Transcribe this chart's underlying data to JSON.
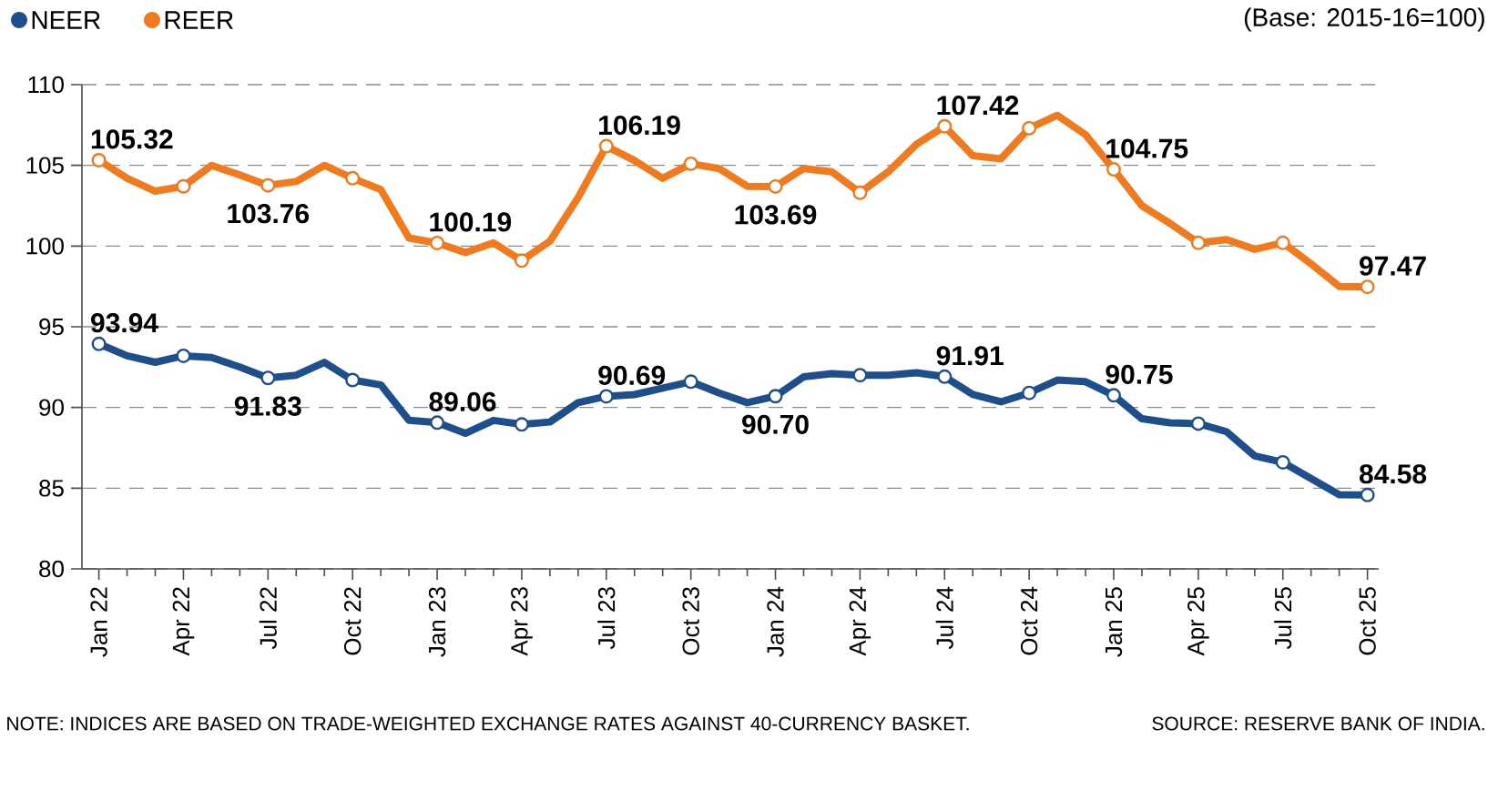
{
  "chart_data": {
    "type": "line",
    "categories": [
      "Jan 22",
      null,
      null,
      "Apr 22",
      null,
      null,
      "Jul 22",
      null,
      null,
      "Oct 22",
      null,
      null,
      "Jan 23",
      null,
      null,
      "Apr 23",
      null,
      null,
      "Jul 23",
      null,
      null,
      "Oct 23",
      null,
      null,
      "Jan 24",
      null,
      null,
      "Apr 24",
      null,
      null,
      "Jul 24",
      null,
      null,
      "Oct 24",
      null,
      null,
      "Jan 25",
      null,
      null,
      "Apr 25",
      null,
      null,
      "Jul 25",
      null,
      null,
      "Oct 25"
    ],
    "series": [
      {
        "name": "NEER",
        "color": "#1f4e8c",
        "values": [
          93.94,
          93.2,
          92.8,
          93.2,
          93.1,
          92.5,
          91.83,
          92.0,
          92.8,
          91.7,
          91.4,
          89.2,
          89.06,
          88.4,
          89.2,
          88.95,
          89.1,
          90.3,
          90.69,
          90.8,
          91.2,
          91.6,
          90.9,
          90.3,
          90.7,
          91.9,
          92.1,
          92.0,
          92.0,
          92.15,
          91.91,
          90.8,
          90.35,
          90.9,
          91.7,
          91.6,
          90.75,
          89.3,
          89.05,
          89.0,
          88.5,
          87.0,
          86.6,
          85.6,
          84.6,
          84.58
        ],
        "value_labels": [
          "93.94",
          null,
          null,
          null,
          null,
          null,
          "91.83",
          null,
          null,
          null,
          null,
          null,
          "89.06",
          null,
          null,
          null,
          null,
          null,
          "90.69",
          null,
          null,
          null,
          null,
          null,
          "90.70",
          null,
          null,
          null,
          null,
          null,
          "91.91",
          null,
          null,
          null,
          null,
          null,
          "90.75",
          null,
          null,
          null,
          null,
          null,
          null,
          null,
          null,
          "84.58"
        ]
      },
      {
        "name": "REER",
        "color": "#f07a1d",
        "values": [
          105.32,
          104.2,
          103.4,
          103.7,
          105.0,
          104.4,
          103.76,
          104.0,
          105.0,
          104.2,
          103.5,
          100.5,
          100.19,
          99.6,
          100.2,
          99.1,
          100.3,
          103.0,
          106.19,
          105.3,
          104.2,
          105.1,
          104.8,
          103.7,
          103.69,
          104.8,
          104.6,
          103.3,
          104.6,
          106.3,
          107.42,
          105.6,
          105.4,
          107.3,
          108.1,
          106.9,
          104.75,
          102.5,
          101.4,
          100.2,
          100.4,
          99.8,
          100.2,
          98.9,
          97.5,
          97.47
        ],
        "value_labels": [
          "105.32",
          null,
          null,
          null,
          null,
          null,
          "103.76",
          null,
          null,
          null,
          null,
          null,
          "100.19",
          null,
          null,
          null,
          null,
          null,
          "106.19",
          null,
          null,
          null,
          null,
          null,
          "103.69",
          null,
          null,
          null,
          null,
          null,
          "107.42",
          null,
          null,
          null,
          null,
          null,
          "104.75",
          null,
          null,
          null,
          null,
          null,
          null,
          null,
          null,
          "97.47"
        ]
      },
      {
        "type": "scatter",
        "color": "#1f4e8c",
        "x": [
          "Jan 22",
          "Apr 22",
          "Jul 22",
          "Oct 22",
          "Jan 23",
          "Apr 23",
          "Jul 23",
          "Oct 23",
          "Jan 24",
          "Apr 24",
          "Jul 24",
          "Oct 24",
          "Jan 25",
          "Apr 25",
          "Jul 25",
          "Oct 25"
        ],
        "values": [
          93.94,
          93.2,
          91.83,
          91.7,
          89.06,
          88.95,
          90.69,
          91.6,
          90.7,
          92.0,
          91.91,
          90.9,
          90.75,
          89.0,
          86.6,
          84.58
        ]
      },
      {
        "type": "scatter",
        "color": "#f07a1d",
        "x": [
          "Jan 22",
          "Apr 22",
          "Jul 22",
          "Oct 22",
          "Jan 23",
          "Apr 23",
          "Jul 23",
          "Oct 23",
          "Jan 24",
          "Apr 24",
          "Jul 24",
          "Oct 24",
          "Jan 25",
          "Apr 25",
          "Jul 25",
          "Oct 25"
        ],
        "values": [
          105.32,
          103.7,
          103.76,
          104.2,
          100.19,
          99.1,
          106.19,
          105.1,
          103.69,
          103.3,
          107.42,
          107.3,
          104.75,
          100.2,
          100.2,
          97.47
        ]
      }
    ],
    "ylim": [
      80,
      110
    ],
    "yticks": [
      80,
      85,
      90,
      95,
      100,
      105,
      110
    ],
    "grid": "y",
    "legend": "top left",
    "line_style": "solid",
    "annotations": [
      "(Base: 2015-16=100)",
      "NOTE: INDICES ARE BASED ON TRADE-WEIGHTED EXCHANGE RATES AGAINST 40-CURRENCY BASKET.",
      "SOURCE: RESERVE BANK OF INDIA."
    ]
  }
}
